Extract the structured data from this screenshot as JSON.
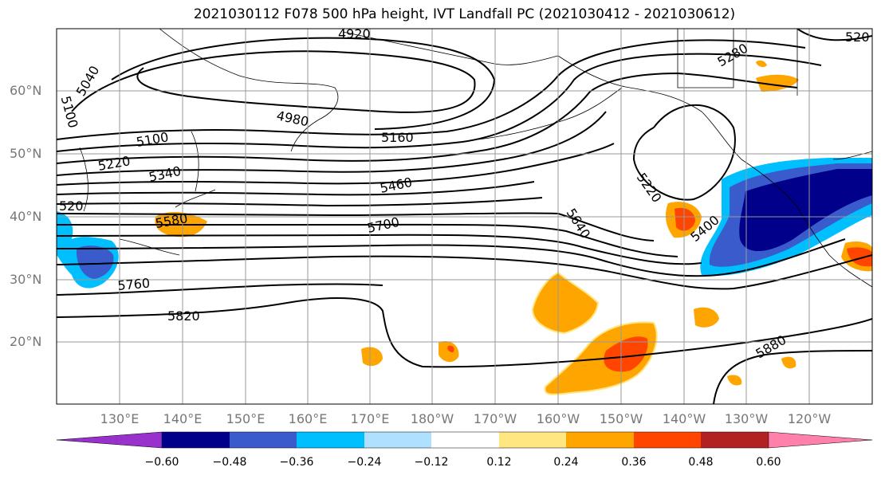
{
  "title": "2021030112 F078 500 hPa height, IVT Landfall PC (2021030412 - 2021030612)",
  "lat_labels": [
    "60°N",
    "50°N",
    "40°N",
    "30°N",
    "20°N"
  ],
  "lon_labels": [
    "130°E",
    "140°E",
    "150°E",
    "160°E",
    "170°E",
    "180°W",
    "170°W",
    "160°W",
    "150°W",
    "140°W",
    "130°W",
    "120°W"
  ],
  "contour_labels": [
    "4920",
    "5040",
    "5100",
    "4980",
    "5100",
    "5160",
    "5220",
    "5340",
    "5460",
    "5220",
    "520",
    "5580",
    "5700",
    "5640",
    "5400",
    "5760",
    "5820",
    "5880",
    "5280",
    "520"
  ],
  "colorbar": {
    "ticks": [
      "−0.60",
      "−0.48",
      "−0.36",
      "−0.24",
      "−0.12",
      "0.12",
      "0.24",
      "0.36",
      "0.48",
      "0.60"
    ],
    "colors": [
      "#9932cc",
      "#00008b",
      "#3a5bcc",
      "#00bfff",
      "#b0e0ff",
      "#ffffff",
      "#ffe680",
      "#ffa500",
      "#ff4500",
      "#b22222",
      "#ff80aa"
    ]
  }
}
